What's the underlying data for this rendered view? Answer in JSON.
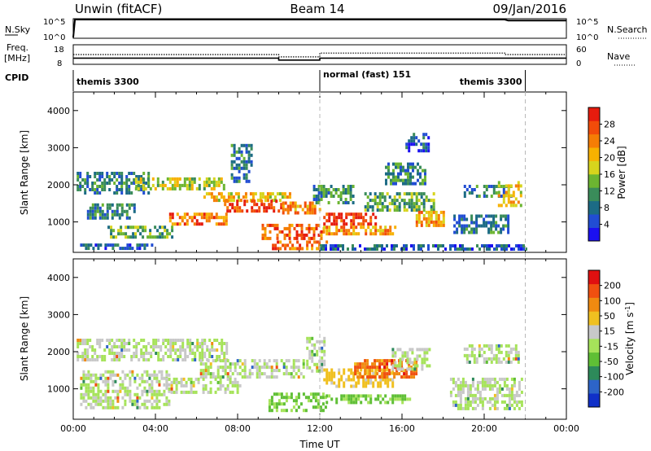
{
  "header": {
    "station": "Unwin (fitACF)",
    "beam": "Beam 14",
    "date": "09/Jan/2016"
  },
  "chart_data": [
    {
      "panel": "noise",
      "type": "line",
      "ylabel_left": "N.Sky",
      "ylabel_right": "N.Search",
      "left_ticks": [
        "10^5",
        "10^0"
      ],
      "right_ticks": [
        "10^5",
        "10^0"
      ],
      "series": [
        {
          "name": "N.Sky",
          "style": "solid",
          "x": [
            "00:00",
            "00:05",
            "21:00",
            "21:10",
            "24:00"
          ],
          "y": [
            1,
            100000,
            100000,
            50000,
            50000
          ]
        }
      ]
    },
    {
      "panel": "frequency",
      "type": "line",
      "ylabel_left": "Freq. [MHz]",
      "ylabel_right": "Nave",
      "left_ticks": [
        "18",
        "8"
      ],
      "right_ticks": [
        "60",
        "0"
      ],
      "series": [
        {
          "name": "Freq.",
          "style": "solid",
          "x": [
            "00:00",
            "10:00",
            "10:00",
            "12:00",
            "12:00",
            "24:00"
          ],
          "y": [
            11,
            11,
            9.9,
            9.9,
            11,
            11
          ]
        },
        {
          "name": "Nave",
          "style": "dotted",
          "x": [
            "00:00",
            "10:00",
            "10:00",
            "12:00",
            "12:00",
            "21:00",
            "21:00",
            "24:00"
          ],
          "y": [
            30,
            30,
            22,
            22,
            35,
            35,
            30,
            30
          ]
        }
      ]
    },
    {
      "panel": "cpid",
      "label": "CPID",
      "segments": [
        {
          "start": "00:00",
          "end": "12:00",
          "text": "themis 3300"
        },
        {
          "start": "12:00",
          "end": "22:00",
          "text": "normal (fast) 151"
        },
        {
          "start": "22:00",
          "end": "24:00",
          "text": "themis 3300"
        }
      ]
    },
    {
      "panel": "power",
      "type": "heatmap",
      "ylabel": "Slant Range [km]",
      "yticks": [
        1000,
        2000,
        3000,
        4000
      ],
      "ylim": [
        180,
        4500
      ],
      "colorbar": {
        "label": "Power [dB]",
        "ticks": [
          "4",
          "8",
          "12",
          "16",
          "20",
          "24",
          "28"
        ],
        "colors": [
          "#1b10f0",
          "#214dd3",
          "#1c6b85",
          "#3a8c5a",
          "#6cb531",
          "#d7d41d",
          "#f7b100",
          "#f57d05",
          "#f24c0a",
          "#e61c0e"
        ],
        "range": [
          0,
          30
        ]
      },
      "bands": [
        {
          "x": [
            "00:10",
            "03:40"
          ],
          "y": [
            1800,
            2350
          ],
          "value": 8
        },
        {
          "x": [
            "03:00",
            "07:20"
          ],
          "y": [
            1900,
            2200
          ],
          "value": 16
        },
        {
          "x": [
            "06:20",
            "10:30"
          ],
          "y": [
            1600,
            1800
          ],
          "value": 18
        },
        {
          "x": [
            "07:20",
            "10:10"
          ],
          "y": [
            1300,
            1600
          ],
          "value": 27
        },
        {
          "x": [
            "00:40",
            "03:00"
          ],
          "y": [
            1100,
            1500
          ],
          "value": 9
        },
        {
          "x": [
            "01:40",
            "04:50"
          ],
          "y": [
            550,
            900
          ],
          "value": 12
        },
        {
          "x": [
            "04:40",
            "07:30"
          ],
          "y": [
            950,
            1250
          ],
          "value": 24
        },
        {
          "x": [
            "10:10",
            "12:00"
          ],
          "y": [
            1250,
            1550
          ],
          "value": 22
        },
        {
          "x": [
            "09:10",
            "12:10"
          ],
          "y": [
            550,
            950
          ],
          "value": 25
        },
        {
          "x": [
            "09:40",
            "12:20"
          ],
          "y": [
            250,
            500
          ],
          "value": 23
        },
        {
          "x": [
            "12:10",
            "14:40"
          ],
          "y": [
            900,
            1250
          ],
          "value": 27
        },
        {
          "x": [
            "12:10",
            "15:40"
          ],
          "y": [
            650,
            900
          ],
          "value": 22
        },
        {
          "x": [
            "11:40",
            "13:40"
          ],
          "y": [
            1500,
            2000
          ],
          "value": 10
        },
        {
          "x": [
            "14:10",
            "17:30"
          ],
          "y": [
            1300,
            1800
          ],
          "value": 12
        },
        {
          "x": [
            "15:10",
            "17:10"
          ],
          "y": [
            2000,
            2600
          ],
          "value": 9
        },
        {
          "x": [
            "16:40",
            "18:00"
          ],
          "y": [
            900,
            1300
          ],
          "value": 20
        },
        {
          "x": [
            "18:30",
            "21:10"
          ],
          "y": [
            700,
            1200
          ],
          "value": 8
        },
        {
          "x": [
            "19:00",
            "21:20"
          ],
          "y": [
            1700,
            2000
          ],
          "value": 9
        },
        {
          "x": [
            "20:40",
            "21:50"
          ],
          "y": [
            1400,
            2100
          ],
          "value": 18
        },
        {
          "x": [
            "00:20",
            "04:00"
          ],
          "y": [
            250,
            420
          ],
          "value": 7
        },
        {
          "x": [
            "12:00",
            "22:00"
          ],
          "y": [
            250,
            400
          ],
          "value": 6
        },
        {
          "x": [
            "07:40",
            "08:40"
          ],
          "y": [
            2100,
            3100
          ],
          "value": 9
        },
        {
          "x": [
            "16:10",
            "17:20"
          ],
          "y": [
            2900,
            3400
          ],
          "value": 6
        }
      ]
    },
    {
      "panel": "velocity",
      "type": "heatmap",
      "ylabel": "Slant Range [km]",
      "yticks": [
        1000,
        2000,
        3000,
        4000
      ],
      "ylim": [
        180,
        4500
      ],
      "xlabel": "Time UT",
      "xticks": [
        "00:00",
        "04:00",
        "08:00",
        "12:00",
        "16:00",
        "20:00",
        "00:00"
      ],
      "colorbar": {
        "label": "Velocity [m s^-1]",
        "ticks": [
          "200",
          "100",
          "50",
          "15",
          "-15",
          "-50",
          "-100",
          "-200"
        ],
        "colors": [
          "#1030c8",
          "#2d64c8",
          "#2d8a5a",
          "#5fbf35",
          "#a6e35a",
          "#c8c8c8",
          "#f0c020",
          "#f08a10",
          "#f05010",
          "#e01010"
        ],
        "range": [
          -250,
          250
        ]
      },
      "bands": [
        {
          "x": [
            "00:10",
            "07:30"
          ],
          "y": [
            1800,
            2350
          ],
          "value": 0
        },
        {
          "x": [
            "06:10",
            "11:10"
          ],
          "y": [
            1350,
            1800
          ],
          "value": 0
        },
        {
          "x": [
            "00:20",
            "04:40"
          ],
          "y": [
            500,
            1500
          ],
          "value": 0
        },
        {
          "x": [
            "04:30",
            "08:10"
          ],
          "y": [
            900,
            1300
          ],
          "value": 0
        },
        {
          "x": [
            "09:30",
            "12:20"
          ],
          "y": [
            450,
            900
          ],
          "value": -60
        },
        {
          "x": [
            "12:10",
            "16:20"
          ],
          "y": [
            650,
            850
          ],
          "value": -60
        },
        {
          "x": [
            "12:10",
            "15:30"
          ],
          "y": [
            1050,
            1550
          ],
          "value": 70
        },
        {
          "x": [
            "13:40",
            "16:40"
          ],
          "y": [
            1300,
            1800
          ],
          "value": 150
        },
        {
          "x": [
            "15:30",
            "17:20"
          ],
          "y": [
            1500,
            2100
          ],
          "value": 0
        },
        {
          "x": [
            "18:20",
            "21:50"
          ],
          "y": [
            500,
            1300
          ],
          "value": 0
        },
        {
          "x": [
            "19:00",
            "21:40"
          ],
          "y": [
            1700,
            2200
          ],
          "value": 0
        },
        {
          "x": [
            "11:20",
            "12:10"
          ],
          "y": [
            1500,
            2400
          ],
          "value": 0
        }
      ]
    }
  ]
}
